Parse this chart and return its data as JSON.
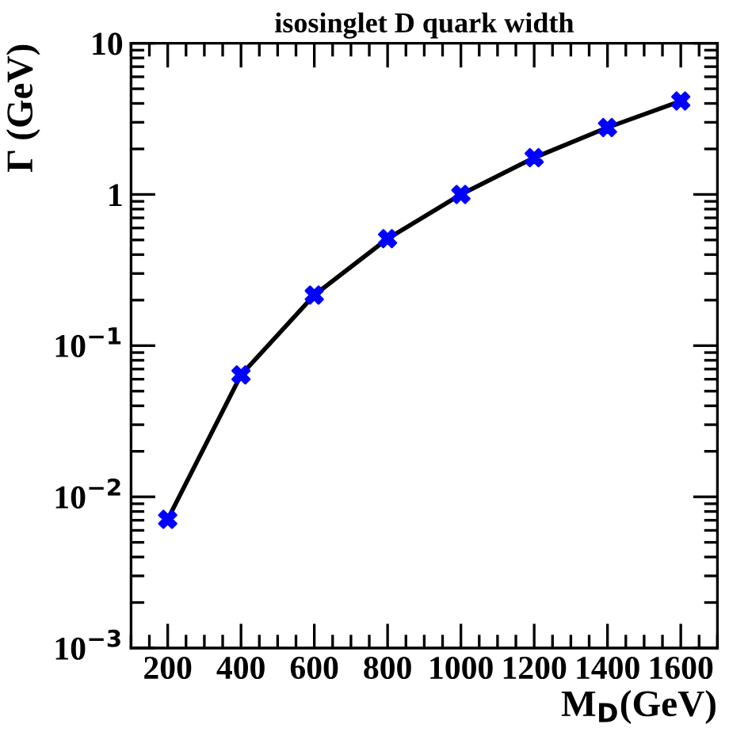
{
  "chart_data": {
    "type": "line",
    "title": "isosinglet D quark width",
    "xlabel": "M$_{D}$(GeV)",
    "ylabel": "Γ (GeV)",
    "x": [
      200,
      400,
      600,
      800,
      1000,
      1200,
      1400,
      1600
    ],
    "series": [
      {
        "color": "#000000",
        "colors": [
          "#0000ff",
          "#0000ff",
          "#0000ff",
          "#0000ff",
          "#0000ff",
          "#0000ff",
          "#0000ff",
          "#0000ff"
        ],
        "values": [
          0.0071,
          0.064,
          0.216,
          0.51,
          1,
          1.75,
          2.77,
          4.15
        ]
      }
    ],
    "log": "y",
    "marker": "cross",
    "line_style": "solid",
    "xlim": [
      100,
      1700
    ],
    "xticks": [
      200,
      400,
      600,
      800,
      1000,
      1200,
      1400,
      1600
    ],
    "ylim": [
      0.001,
      10
    ],
    "yticks": [
      {
        "value": 0.001,
        "label": "10$^{−3}$"
      },
      {
        "value": 0.01,
        "label": "10$^{−2}$"
      },
      {
        "value": 0.1,
        "label": "10$^{−1}$"
      },
      1,
      10
    ]
  }
}
